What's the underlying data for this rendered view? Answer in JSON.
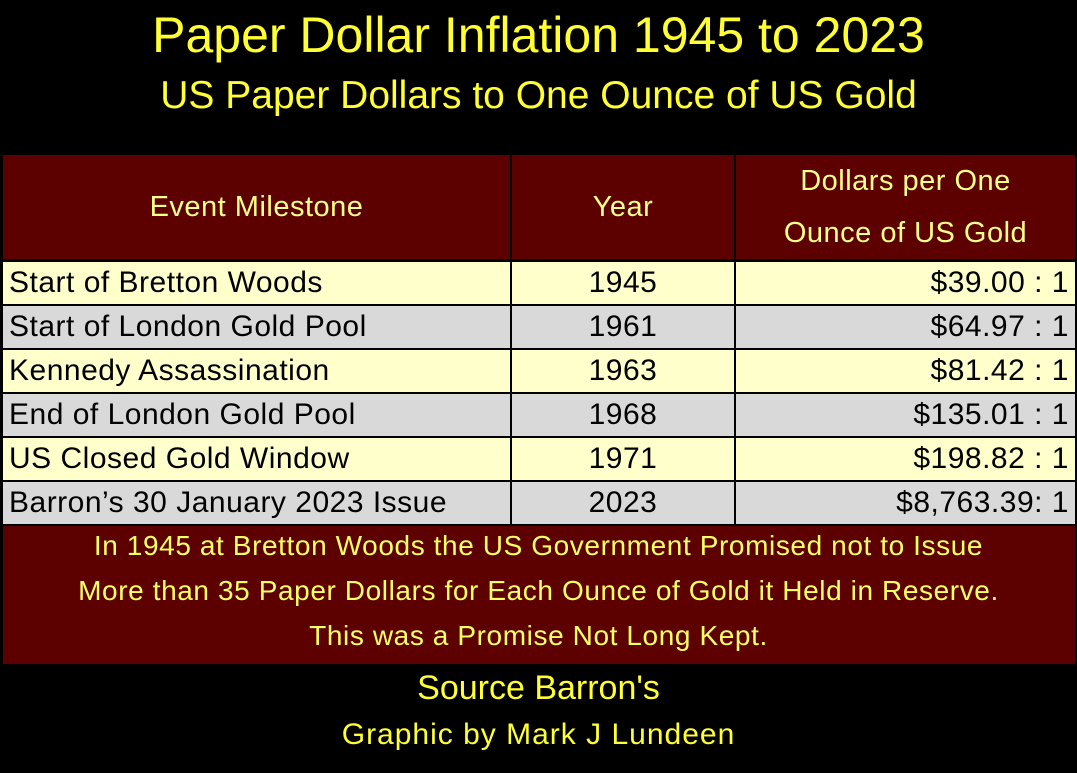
{
  "header": {
    "title": "Paper Dollar Inflation 1945 to 2023",
    "subtitle": "US Paper Dollars to One Ounce of US Gold"
  },
  "table": {
    "columns": [
      "Event Milestone",
      "Year",
      [
        "Dollars per One",
        "Ounce of US Gold"
      ]
    ],
    "rows": [
      [
        "Start of Bretton Woods",
        "1945",
        "$39.00 : 1"
      ],
      [
        "Start of London Gold Pool",
        "1961",
        "$64.97 : 1"
      ],
      [
        "Kennedy Assassination",
        "1963",
        "$81.42 : 1"
      ],
      [
        "End of London Gold Pool",
        "1968",
        "$135.01 : 1"
      ],
      [
        "US Closed Gold Window",
        "1971",
        "$198.82 : 1"
      ],
      [
        "Barron’s 30 January 2023 Issue",
        "2023",
        "$8,763.39: 1"
      ]
    ]
  },
  "note": [
    "In 1945 at Bretton Woods the US Government Promised not to Issue",
    "More than 35 Paper Dollars for Each Ounce of Gold it Held in Reserve.",
    "This was a Promise Not Long Kept."
  ],
  "footer": {
    "source": "Source Barron's",
    "credit": "Graphic by Mark J Lundeen"
  }
}
